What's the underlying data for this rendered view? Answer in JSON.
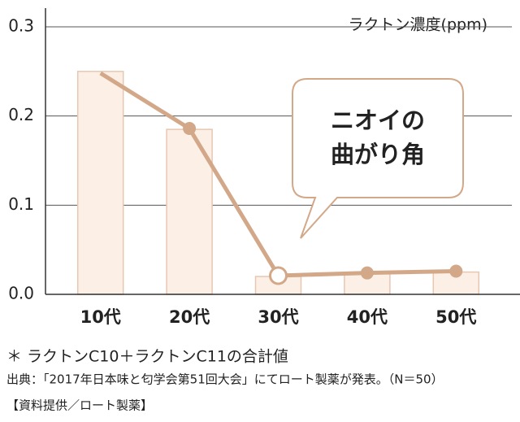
{
  "chart_data": {
    "type": "bar_line",
    "y_label": "ラクトン濃度(ppm)",
    "categories": [
      "10代",
      "20代",
      "30代",
      "40代",
      "50代"
    ],
    "series": [
      {
        "type": "bar",
        "color": "#fcefe6",
        "values": [
          0.25,
          0.185,
          0.02,
          0.023,
          0.025
        ]
      },
      {
        "type": "line",
        "color": "#d3a889",
        "values": [
          0.248,
          0.186,
          0.021,
          0.024,
          0.026
        ],
        "markers": [
          false,
          true,
          true,
          true,
          true
        ],
        "hollow_markers": [
          false,
          false,
          true,
          false,
          false
        ]
      }
    ],
    "ylim": [
      0,
      0.3
    ],
    "yticks": [
      {
        "value": 0,
        "label": "0.0"
      },
      0.1,
      0.2,
      0.3
    ],
    "grid": true,
    "annotation": [
      "ニオイの",
      "曲がり角"
    ],
    "footnote": "＊ ラクトンC10＋ラクトンC11の合計値",
    "source": "出典：「2017年日本味と匂学会第51回大会」にてロート製薬が発表。（N＝50）",
    "credit": "【資料提供／ロート製薬】"
  }
}
